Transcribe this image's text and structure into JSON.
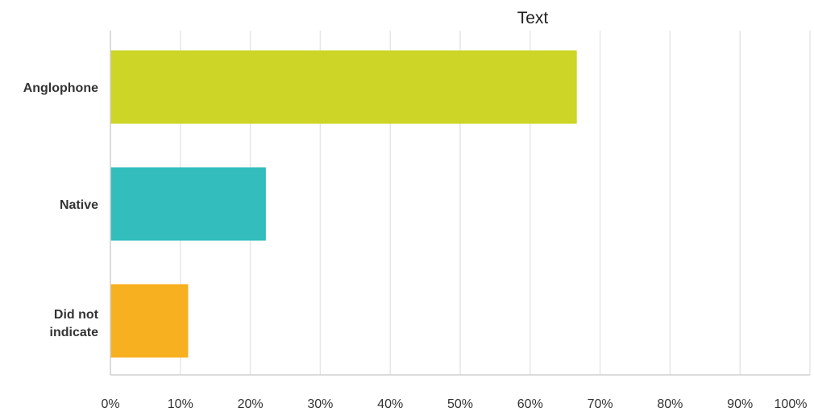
{
  "chart_data": {
    "type": "bar",
    "orientation": "horizontal",
    "title": "Text",
    "categories": [
      "Anglophone",
      "Native",
      "Did not indicate"
    ],
    "values": [
      66.67,
      22.22,
      11.11
    ],
    "colors": [
      "#cdd527",
      "#33bdbd",
      "#f7b01f"
    ],
    "xlim": [
      0,
      100
    ],
    "xticks": [
      "0%",
      "10%",
      "20%",
      "30%",
      "40%",
      "50%",
      "60%",
      "70%",
      "80%",
      "90%",
      "100%"
    ],
    "grid": true,
    "xlabel": "",
    "ylabel": ""
  }
}
